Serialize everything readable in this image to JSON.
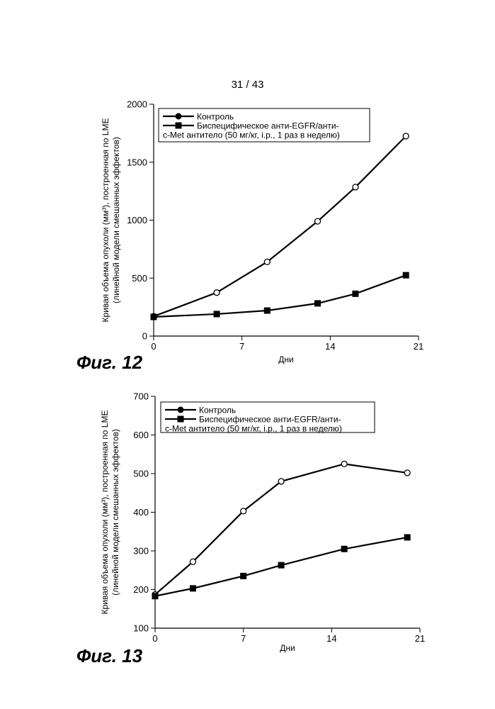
{
  "page_number": "31 / 43",
  "chart_data": [
    {
      "type": "line",
      "figure_label": "Фиг. 12",
      "xlabel": "Дни",
      "ylabel": "Кривая объема опухоли (мм³), построенная по LME",
      "ylabel2": "(линейной модели смешанных эффектов)",
      "xlim": [
        0,
        21
      ],
      "ylim": [
        0,
        2000
      ],
      "x_ticks": [
        0,
        7,
        14,
        21
      ],
      "y_ticks": [
        0,
        500,
        1000,
        1500,
        2000
      ],
      "grid": false,
      "legend_position": "top-left",
      "series": [
        {
          "name": "Контроль",
          "marker": "circle",
          "x": [
            0,
            5,
            9,
            13,
            16,
            20
          ],
          "y": [
            170,
            375,
            640,
            990,
            1285,
            1725
          ]
        },
        {
          "name": "Биспецифическое анти-EGFR/анти-",
          "name_line2": "c-Met антитело (50 мг/кг, i.p., 1 раз в неделю)",
          "marker": "square",
          "x": [
            0,
            5,
            9,
            13,
            16,
            20
          ],
          "y": [
            165,
            190,
            220,
            282,
            365,
            525
          ]
        }
      ]
    },
    {
      "type": "line",
      "figure_label": "Фиг. 13",
      "xlabel": "Дни",
      "ylabel": "Кривая объема опухоли (мм³), построенная по LME",
      "ylabel2": "(линейной модели смешанных эффектов)",
      "xlim": [
        0,
        21
      ],
      "ylim": [
        100,
        700
      ],
      "x_ticks": [
        0,
        7,
        14,
        21
      ],
      "y_ticks": [
        100,
        200,
        300,
        400,
        500,
        600,
        700
      ],
      "grid": false,
      "legend_position": "top-left",
      "series": [
        {
          "name": "Контроль",
          "marker": "circle",
          "x": [
            0,
            3,
            7,
            10,
            15,
            20
          ],
          "y": [
            187,
            272,
            403,
            480,
            525,
            502
          ]
        },
        {
          "name": "Биспецифическое анти-EGFR/анти-",
          "name_line2": "c-Met антитело (50 мг/кг, i.p., 1 раз в неделю)",
          "marker": "square",
          "x": [
            0,
            3,
            7,
            10,
            15,
            20
          ],
          "y": [
            183,
            203,
            235,
            263,
            305,
            335
          ]
        }
      ]
    }
  ]
}
